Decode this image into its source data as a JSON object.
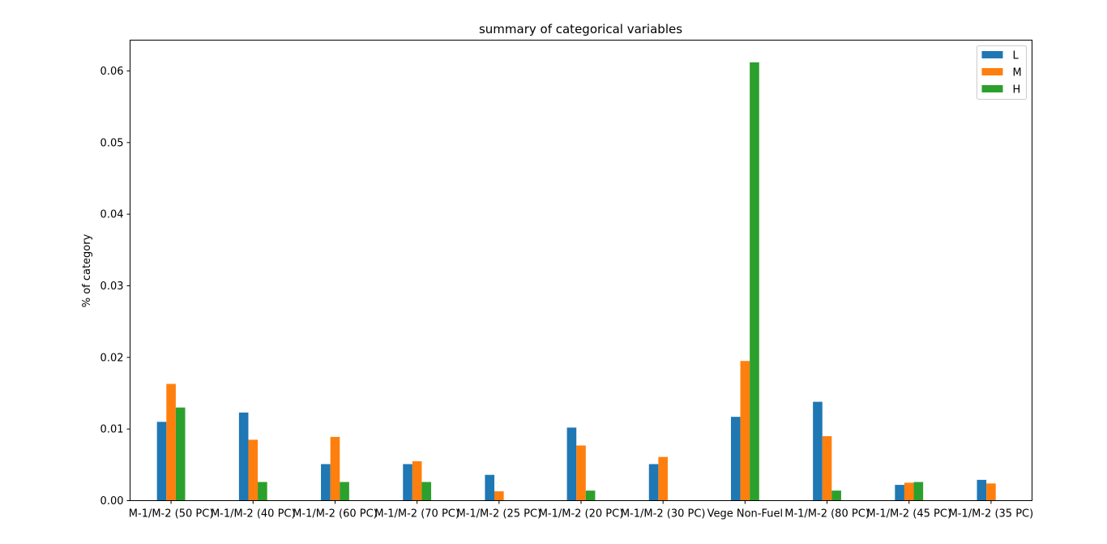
{
  "chart_data": {
    "type": "bar",
    "title": "summary of categorical variables",
    "xlabel": "",
    "ylabel": "% of category",
    "ylim": [
      0,
      0.0643
    ],
    "yticks": [
      "0.00",
      "0.01",
      "0.02",
      "0.03",
      "0.04",
      "0.05",
      "0.06"
    ],
    "categories": [
      "M-1/M-2 (50 PC)",
      "M-1/M-2 (40 PC)",
      "M-1/M-2 (60 PC)",
      "M-1/M-2 (70 PC)",
      "M-1/M-2 (25 PC)",
      "M-1/M-2 (20 PC)",
      "M-1/M-2 (30 PC)",
      "Vege Non-Fuel",
      "M-1/M-2 (80 PC)",
      "M-1/M-2 (45 PC)",
      "M-1/M-2 (35 PC)"
    ],
    "series": [
      {
        "name": "L",
        "color": "#1f77b4",
        "values": [
          0.011,
          0.0123,
          0.0051,
          0.0051,
          0.0036,
          0.0102,
          0.0051,
          0.0117,
          0.0138,
          0.0022,
          0.0029
        ]
      },
      {
        "name": "M",
        "color": "#ff7f0e",
        "values": [
          0.0163,
          0.0085,
          0.0089,
          0.0055,
          0.0013,
          0.0077,
          0.0061,
          0.0195,
          0.009,
          0.0025,
          0.0024
        ]
      },
      {
        "name": "H",
        "color": "#2ca02c",
        "values": [
          0.013,
          0.0026,
          0.0026,
          0.0026,
          0.0,
          0.0014,
          0.0,
          0.0612,
          0.0014,
          0.0026,
          0.0
        ]
      }
    ],
    "grid": false,
    "legend_position": "top-right"
  }
}
